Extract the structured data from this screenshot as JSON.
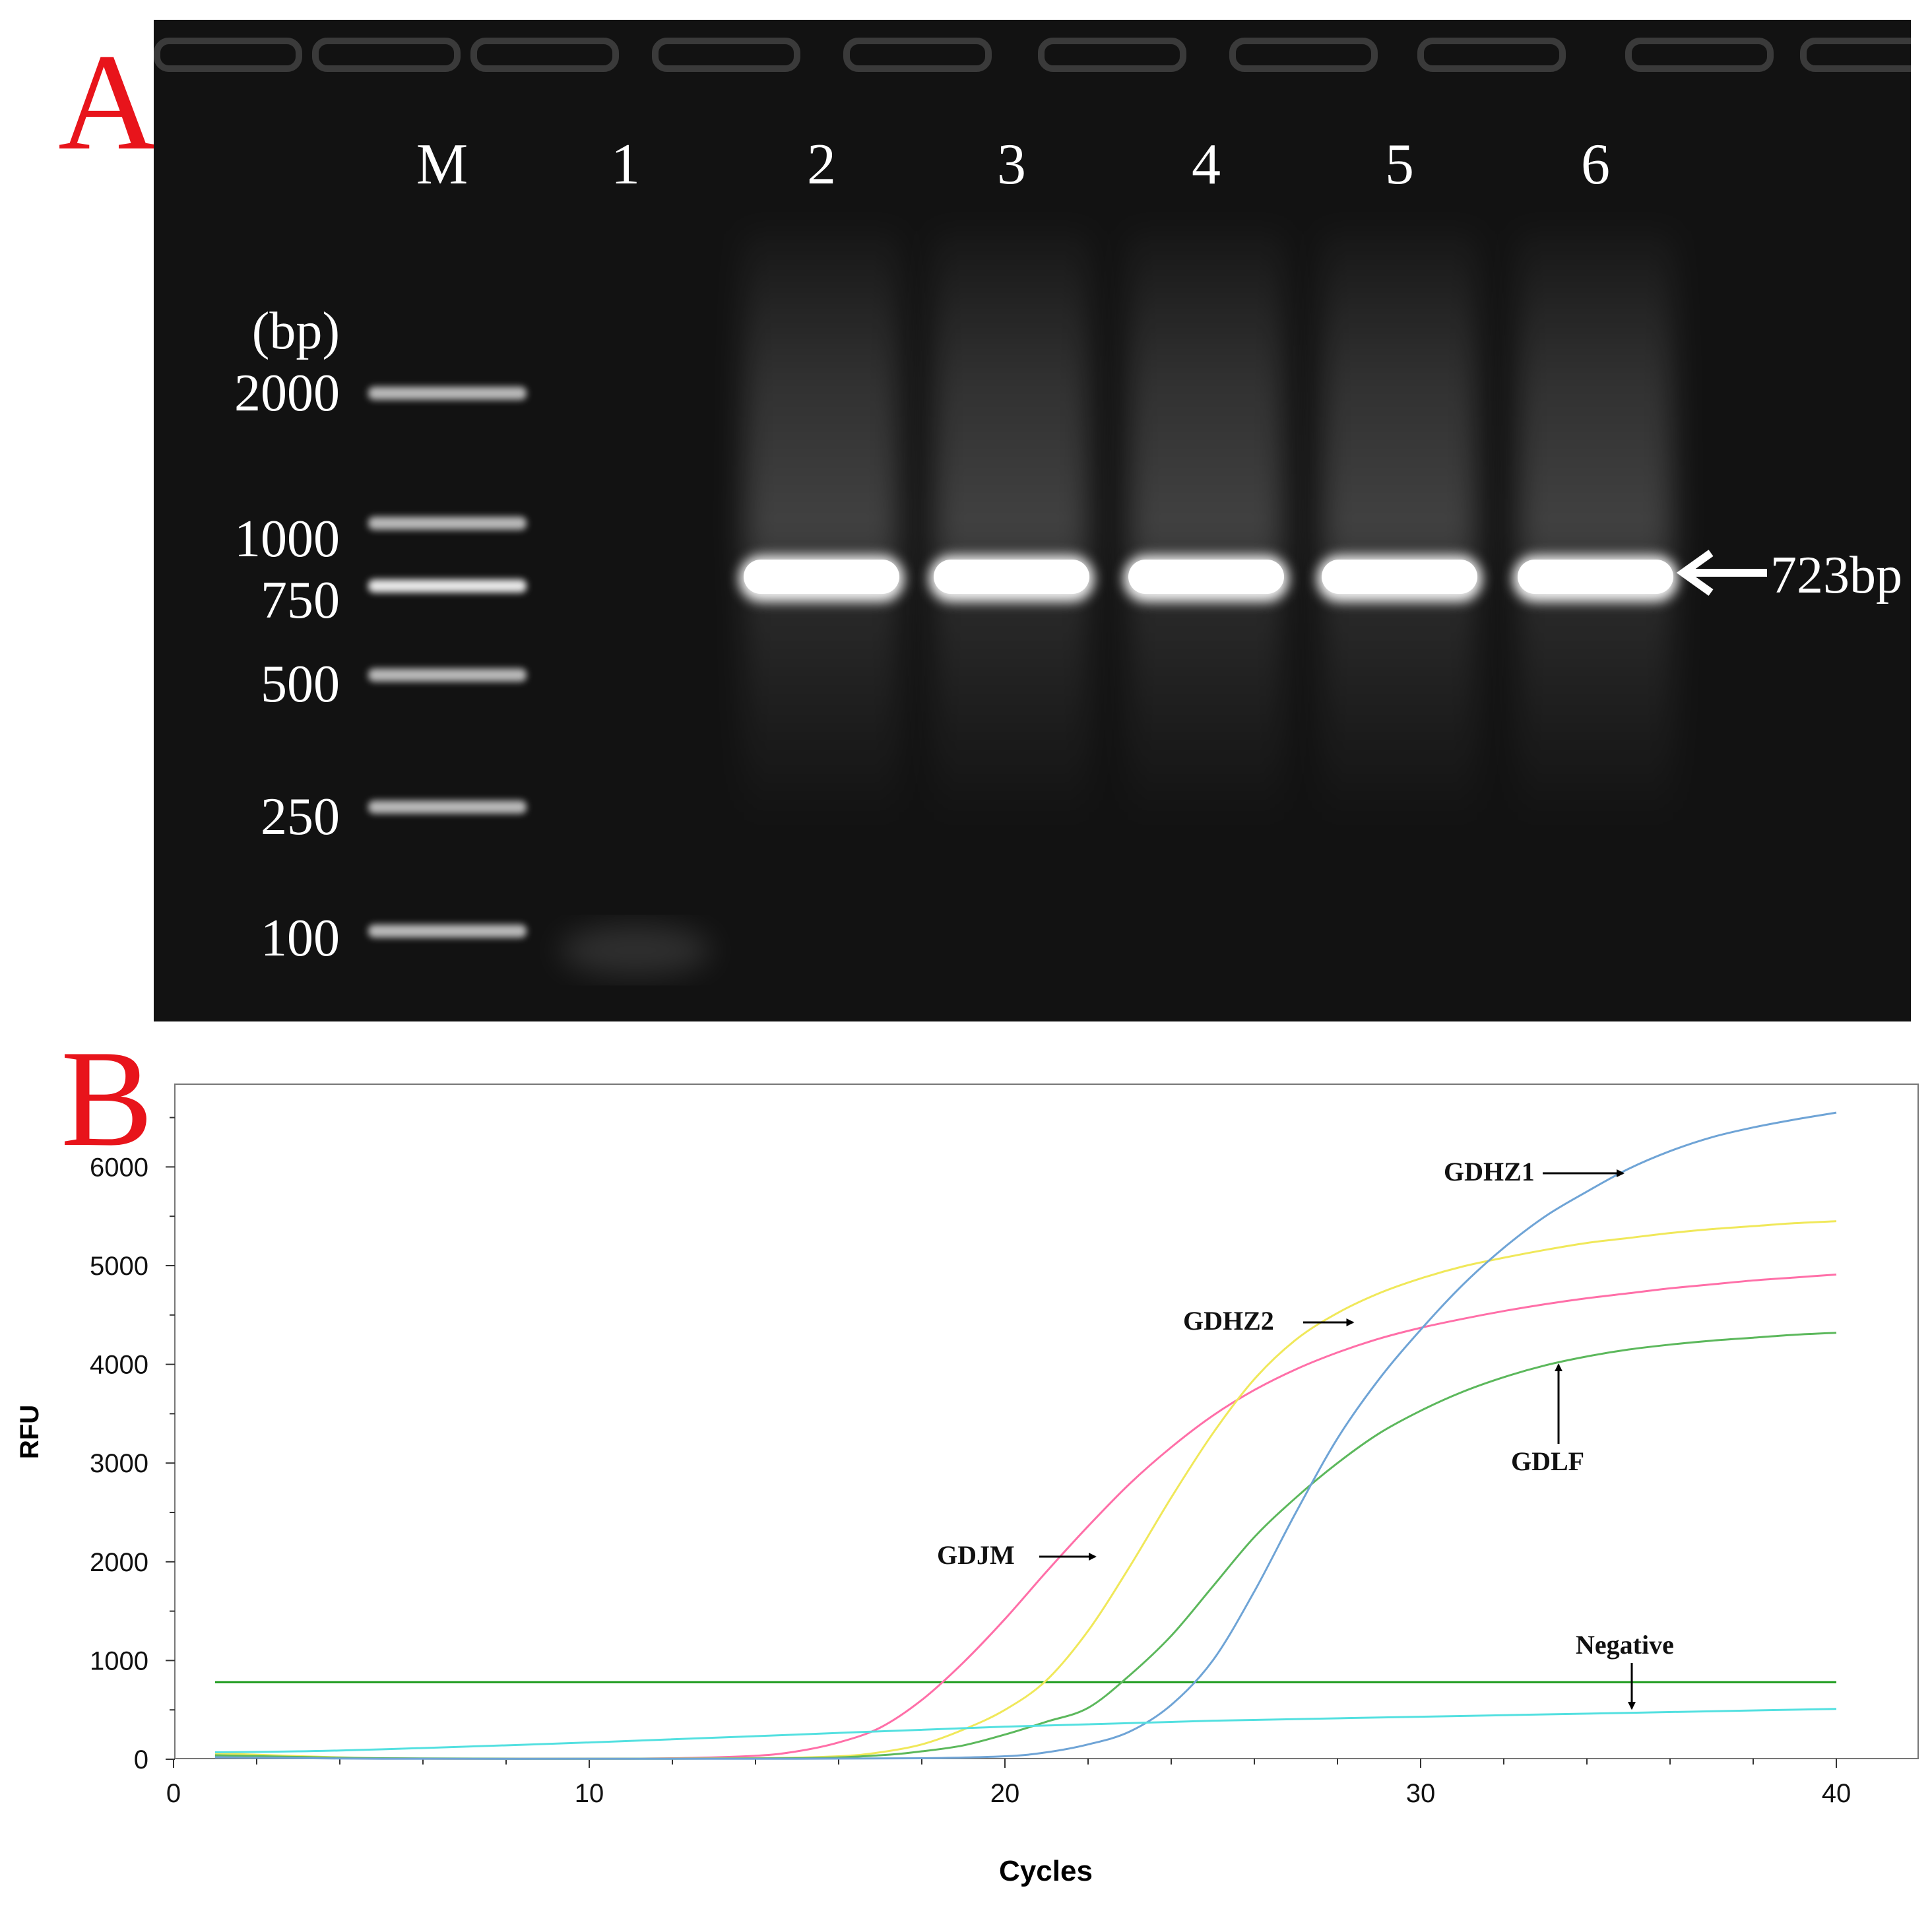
{
  "panel_a": {
    "letter": "A",
    "lane_labels": [
      "M",
      "1",
      "2",
      "3",
      "4",
      "5",
      "6"
    ],
    "unit_label": "(bp)",
    "ladder_sizes": [
      "2000",
      "1000",
      "750",
      "500",
      "250",
      "100"
    ],
    "product_label": "723bp",
    "colors": {
      "gel_background": "#111111",
      "band": "#ffffff",
      "label_text": "#ffffff"
    }
  },
  "panel_b": {
    "letter": "B",
    "chart_data": {
      "type": "line",
      "xlabel": "Cycles",
      "ylabel": "RFU",
      "xlim": [
        0,
        42
      ],
      "ylim": [
        0,
        6900
      ],
      "xticks": [
        0,
        10,
        20,
        30,
        40
      ],
      "yticks": [
        0,
        1000,
        2000,
        3000,
        4000,
        5000,
        6000
      ],
      "grid": true,
      "threshold": {
        "value": 780,
        "color": "#1a9a1a"
      },
      "series": [
        {
          "name": "GDJM",
          "color": "#ff6fa8",
          "x": [
            1,
            5,
            10,
            12,
            14,
            15,
            16,
            17,
            18,
            19,
            20,
            21,
            22,
            23,
            24,
            25,
            26,
            27,
            28,
            29,
            30,
            31,
            32,
            33,
            34,
            35,
            36,
            37,
            38,
            39,
            40
          ],
          "y": [
            30,
            8,
            5,
            10,
            35,
            80,
            170,
            320,
            600,
            980,
            1420,
            1900,
            2360,
            2790,
            3160,
            3480,
            3740,
            3950,
            4120,
            4260,
            4370,
            4460,
            4540,
            4610,
            4670,
            4720,
            4770,
            4810,
            4850,
            4880,
            4910
          ]
        },
        {
          "name": "GDHZ2",
          "color": "#f0e85a",
          "x": [
            1,
            5,
            10,
            14,
            16,
            17,
            18,
            19,
            20,
            21,
            22,
            23,
            24,
            25,
            26,
            27,
            28,
            29,
            30,
            31,
            32,
            33,
            34,
            35,
            36,
            37,
            38,
            39,
            40
          ],
          "y": [
            60,
            10,
            5,
            10,
            30,
            70,
            150,
            300,
            500,
            800,
            1300,
            1950,
            2650,
            3300,
            3850,
            4250,
            4520,
            4720,
            4870,
            4990,
            5080,
            5160,
            5230,
            5280,
            5330,
            5370,
            5400,
            5430,
            5450
          ]
        },
        {
          "name": "GDLF",
          "color": "#5cb85c",
          "x": [
            1,
            5,
            10,
            15,
            17,
            18,
            19,
            20,
            21,
            22,
            23,
            24,
            25,
            26,
            27,
            28,
            29,
            30,
            31,
            32,
            33,
            34,
            35,
            36,
            37,
            38,
            39,
            40
          ],
          "y": [
            40,
            10,
            5,
            10,
            40,
            80,
            140,
            250,
            380,
            520,
            850,
            1250,
            1750,
            2250,
            2650,
            3000,
            3300,
            3530,
            3720,
            3870,
            3990,
            4080,
            4150,
            4200,
            4240,
            4270,
            4300,
            4320
          ]
        },
        {
          "name": "GDHZ1",
          "color": "#6fa4d6",
          "x": [
            1,
            5,
            10,
            15,
            18,
            20,
            21,
            22,
            23,
            24,
            25,
            26,
            27,
            28,
            29,
            30,
            31,
            32,
            33,
            34,
            35,
            36,
            37,
            38,
            39,
            40
          ],
          "y": [
            20,
            5,
            5,
            5,
            10,
            30,
            70,
            150,
            280,
            550,
            1000,
            1700,
            2500,
            3250,
            3850,
            4350,
            4800,
            5180,
            5500,
            5750,
            5980,
            6160,
            6300,
            6400,
            6480,
            6550
          ]
        },
        {
          "name": "Negative",
          "color": "#53e0e0",
          "x": [
            1,
            3,
            5,
            10,
            15,
            20,
            25,
            30,
            35,
            40
          ],
          "y": [
            70,
            80,
            100,
            170,
            250,
            330,
            390,
            430,
            470,
            510
          ]
        }
      ],
      "annotations": [
        {
          "text": "GDHZ1",
          "target_x": 35,
          "target_y": 5980
        },
        {
          "text": "GDHZ2",
          "target_x": 28.5,
          "target_y": 4450
        },
        {
          "text": "GDLF",
          "target_x": 33.3,
          "target_y": 4050
        },
        {
          "text": "GDJM",
          "target_x": 22.3,
          "target_y": 1900
        },
        {
          "text": "Negative",
          "target_x": 35,
          "target_y": 460
        }
      ]
    }
  }
}
